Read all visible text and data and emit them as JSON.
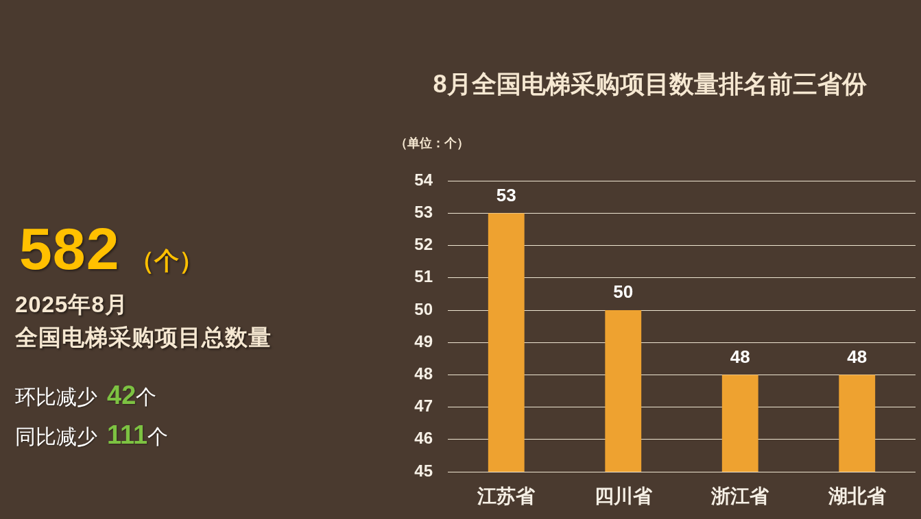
{
  "chart_data": [
    {
      "type": "other",
      "annotations": [
        "582",
        "（个）",
        "2025年8月",
        "全国电梯采购项目总数量",
        "环比减少",
        "42",
        "个",
        "同比减少",
        "111",
        "个"
      ]
    },
    {
      "type": "bar",
      "title": "8月全国电梯采购项目数量排名前三省份",
      "ylabel": "（单位：个）",
      "categories": [
        "江苏省",
        "四川省",
        "浙江省",
        "湖北省"
      ],
      "values": [
        53,
        50,
        48,
        48
      ],
      "color": "#eea230",
      "ylim": [
        45,
        54
      ],
      "yticks": [
        45,
        46,
        47,
        48,
        49,
        50,
        51,
        52,
        53,
        54
      ],
      "grid": "y",
      "data_labels": true
    }
  ]
}
